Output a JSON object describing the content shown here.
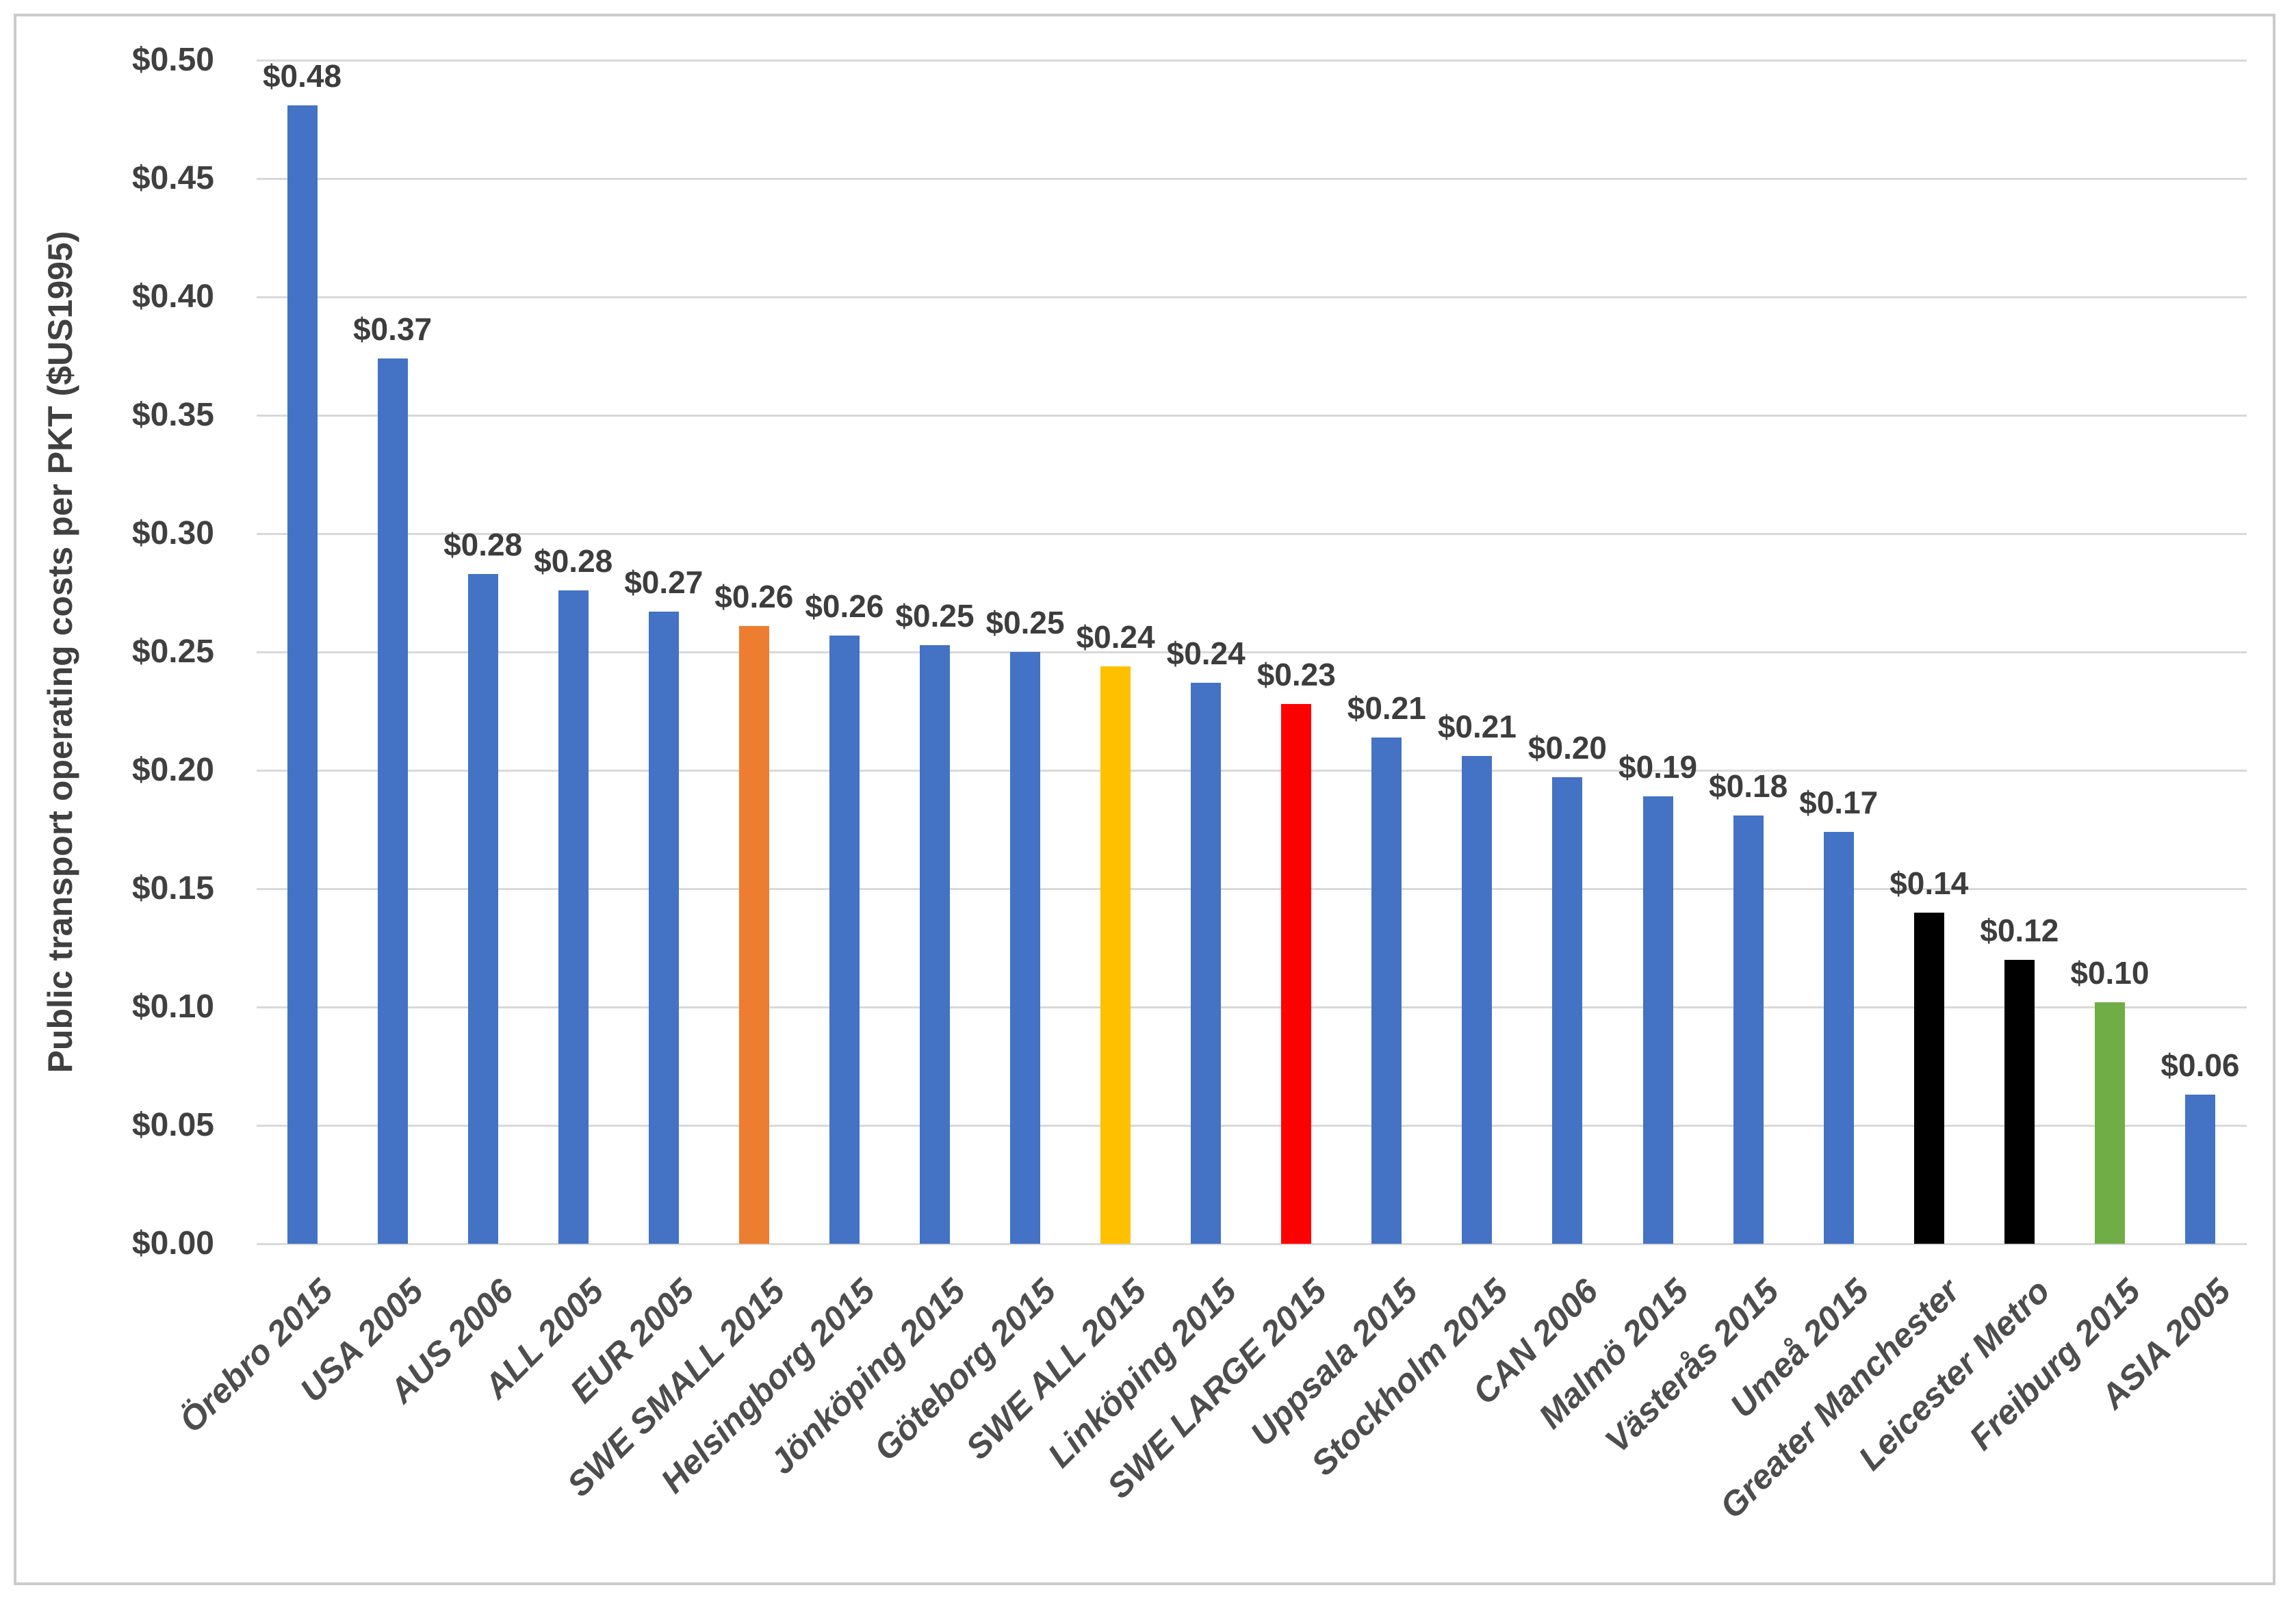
{
  "chart_data": {
    "type": "bar",
    "title": "",
    "xlabel": "",
    "ylabel": "Public transport operating costs per PKT ($US1995)",
    "ylim": [
      0,
      0.5
    ],
    "y_tick_step": 0.05,
    "grid": "horizontal light-gray gridlines",
    "legend": "none",
    "categories": [
      "Örebro 2015",
      "USA 2005",
      "AUS 2006",
      "ALL 2005",
      "EUR 2005",
      "SWE SMALL 2015",
      "Helsingborg 2015",
      "Jönköping 2015",
      "Göteborg 2015",
      "SWE ALL 2015",
      "Linköping 2015",
      "SWE LARGE 2015",
      "Uppsala 2015",
      "Stockholm 2015",
      "CAN 2006",
      "Malmö 2015",
      "Västerås 2015",
      "Umeå 2015",
      "Greater Manchester",
      "Leicester Metro",
      "Freiburg 2015",
      "ASIA 2005"
    ],
    "values": [
      0.481,
      0.374,
      0.283,
      0.276,
      0.267,
      0.261,
      0.257,
      0.253,
      0.25,
      0.244,
      0.237,
      0.228,
      0.214,
      0.206,
      0.197,
      0.189,
      0.181,
      0.174,
      0.14,
      0.12,
      0.102,
      0.063
    ],
    "data_labels": [
      "$0.48",
      "$0.37",
      "$0.28",
      "$0.28",
      "$0.27",
      "$0.26",
      "$0.26",
      "$0.25",
      "$0.25",
      "$0.24",
      "$0.24",
      "$0.23",
      "$0.21",
      "$0.21",
      "$0.20",
      "$0.19",
      "$0.18",
      "$0.17",
      "$0.14",
      "$0.12",
      "$0.10",
      "$0.06"
    ],
    "bar_colors": [
      "#4472C4",
      "#4472C4",
      "#4472C4",
      "#4472C4",
      "#4472C4",
      "#ED7D31",
      "#4472C4",
      "#4472C4",
      "#4472C4",
      "#FFC000",
      "#4472C4",
      "#FF0000",
      "#4472C4",
      "#4472C4",
      "#4472C4",
      "#4472C4",
      "#4472C4",
      "#4472C4",
      "#000000",
      "#000000",
      "#70AD47",
      "#4472C4"
    ],
    "y_ticks": [
      {
        "value": 0.0,
        "label": "$0.00"
      },
      {
        "value": 0.05,
        "label": "$0.05"
      },
      {
        "value": 0.1,
        "label": "$0.10"
      },
      {
        "value": 0.15,
        "label": "$0.15"
      },
      {
        "value": 0.2,
        "label": "$0.20"
      },
      {
        "value": 0.25,
        "label": "$0.25"
      },
      {
        "value": 0.3,
        "label": "$0.30"
      },
      {
        "value": 0.35,
        "label": "$0.35"
      },
      {
        "value": 0.4,
        "label": "$0.40"
      },
      {
        "value": 0.45,
        "label": "$0.45"
      },
      {
        "value": 0.5,
        "label": "$0.50"
      }
    ]
  },
  "colors": {
    "bar_default_blue": "#4472C4",
    "bar_orange_swe_small": "#ED7D31",
    "bar_yellow_swe_all": "#FFC000",
    "bar_red_swe_large": "#FF0000",
    "bar_black_uk": "#000000",
    "bar_green_freiburg": "#70AD47",
    "gridline": "#d9d9d9",
    "chart_border": "#cbcbcb",
    "axis_text": "#404040",
    "category_text": "#4d4d4d",
    "background": "#ffffff"
  }
}
